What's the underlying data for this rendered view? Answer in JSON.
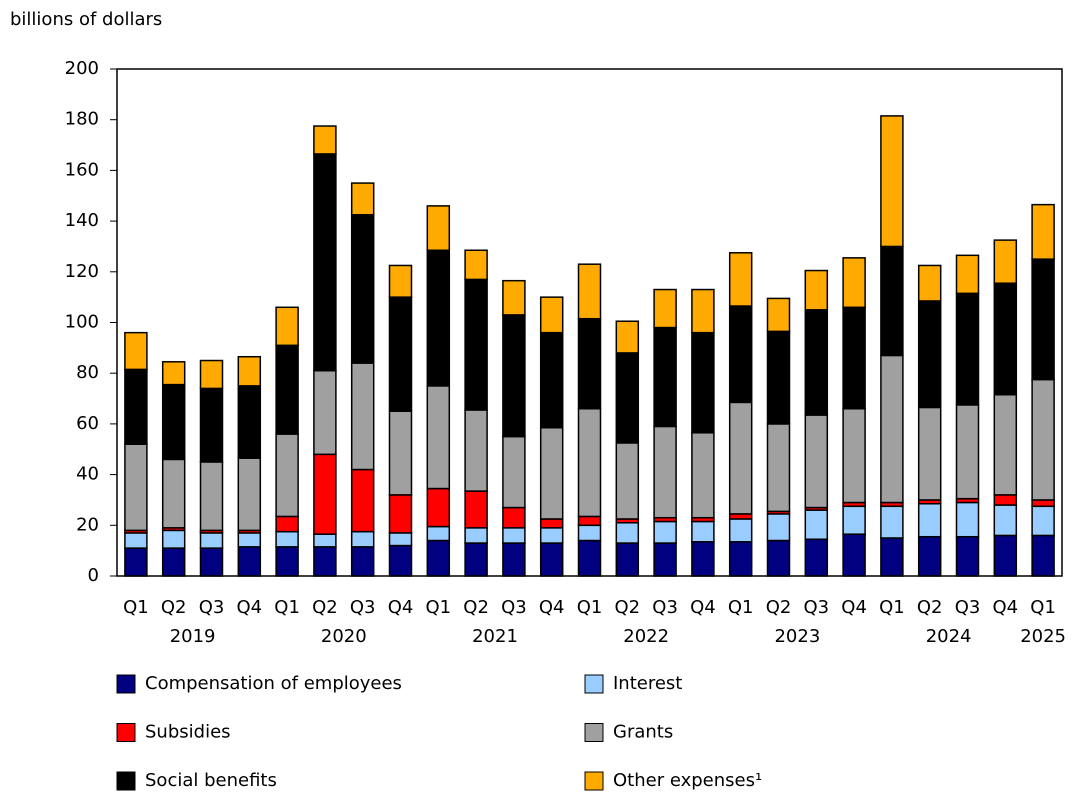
{
  "chart_data": {
    "type": "stacked_bar",
    "y_label": "billions of dollars",
    "categories": [
      "Q1",
      "Q2",
      "Q3",
      "Q4",
      "Q1",
      "Q2",
      "Q3",
      "Q4",
      "Q1",
      "Q2",
      "Q3",
      "Q4",
      "Q1",
      "Q2",
      "Q3",
      "Q4",
      "Q1",
      "Q2",
      "Q3",
      "Q4",
      "Q1",
      "Q2",
      "Q3",
      "Q4",
      "Q1"
    ],
    "years": [
      "2019",
      "2020",
      "2021",
      "2022",
      "2023",
      "2024",
      "2025"
    ],
    "ylim": [
      0,
      200
    ],
    "yticks": [
      0,
      20,
      40,
      60,
      80,
      100,
      120,
      140,
      160,
      180,
      200
    ],
    "grid": false,
    "series": [
      {
        "name": "Compensation of employees",
        "color": "#000080",
        "values": [
          11,
          11,
          11,
          11.5,
          11.5,
          11.5,
          11.5,
          12,
          14,
          13,
          13,
          13,
          14,
          13,
          13,
          13.5,
          13.5,
          14,
          14.5,
          16.5,
          15,
          15.5,
          15.5,
          16,
          16
        ]
      },
      {
        "name": "Interest",
        "color": "#99ccff",
        "values": [
          6,
          7,
          6,
          5.5,
          6,
          5,
          6,
          5,
          5.5,
          6,
          6,
          6,
          6,
          8,
          8.5,
          8,
          9,
          10.5,
          11.5,
          11,
          12.5,
          13,
          13.5,
          12,
          11.5
        ]
      },
      {
        "name": "Subsidies",
        "color": "#ff0000",
        "values": [
          1,
          1,
          1,
          1,
          6,
          31.5,
          24.5,
          15,
          15,
          14.5,
          8,
          3.5,
          3.5,
          1.5,
          1.5,
          1.5,
          2,
          1,
          1,
          1.5,
          1.5,
          1.5,
          1.5,
          4,
          2.5
        ]
      },
      {
        "name": "Grants",
        "color": "#a0a0a0",
        "values": [
          34,
          27,
          27,
          28.5,
          32.5,
          33,
          42,
          33,
          40.5,
          32,
          28,
          36,
          42.5,
          30,
          36,
          33.5,
          44,
          34.5,
          36.5,
          37,
          58,
          36.5,
          37,
          39.5,
          47.5
        ]
      },
      {
        "name": "Social benefits",
        "color": "#000000",
        "values": [
          29.5,
          29.5,
          29,
          28.5,
          35,
          85.5,
          58.5,
          45,
          53.5,
          51.5,
          48,
          37.5,
          35.5,
          35.5,
          39,
          39.5,
          38,
          36.5,
          41.5,
          40,
          43,
          42,
          44,
          44,
          47.5
        ]
      },
      {
        "name": "Other expenses¹",
        "color": "#ffaa00",
        "values": [
          14.5,
          9,
          11,
          11.5,
          15,
          11,
          12.5,
          12.5,
          17.5,
          11.5,
          13.5,
          14,
          21.5,
          12.5,
          15,
          17,
          21,
          13,
          15.5,
          19.5,
          51.5,
          14,
          15,
          17,
          21.5
        ]
      }
    ]
  }
}
